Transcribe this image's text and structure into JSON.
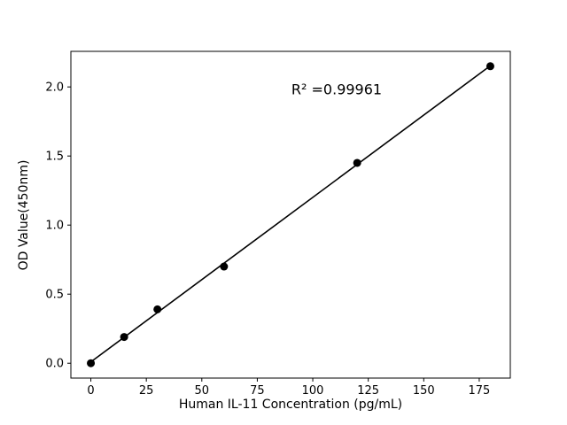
{
  "chart_data": {
    "type": "scatter",
    "title": "",
    "xlabel": "Human IL-11 Concentration (pg/mL)",
    "ylabel": "OD Value(450nm)",
    "annotation": "R² =0.99961",
    "x": [
      0,
      15,
      30,
      60,
      120,
      180
    ],
    "y": [
      0.0,
      0.19,
      0.39,
      0.7,
      1.45,
      2.15
    ],
    "fit_line": true,
    "xlim": [
      -9,
      189
    ],
    "ylim": [
      -0.1075,
      2.2575
    ],
    "xtick_values": [
      0,
      25,
      50,
      75,
      100,
      125,
      150,
      175
    ],
    "xtick_labels": [
      "0",
      "25",
      "50",
      "75",
      "100",
      "125",
      "150",
      "175"
    ],
    "ytick_values": [
      0.0,
      0.5,
      1.0,
      1.5,
      2.0
    ],
    "ytick_labels": [
      "0.0",
      "0.5",
      "1.0",
      "1.5",
      "2.0"
    ],
    "grid": false,
    "legend": "none",
    "colors": {
      "marker": "#000000",
      "line": "#000000",
      "axes": "#000000",
      "background": "#ffffff"
    }
  }
}
